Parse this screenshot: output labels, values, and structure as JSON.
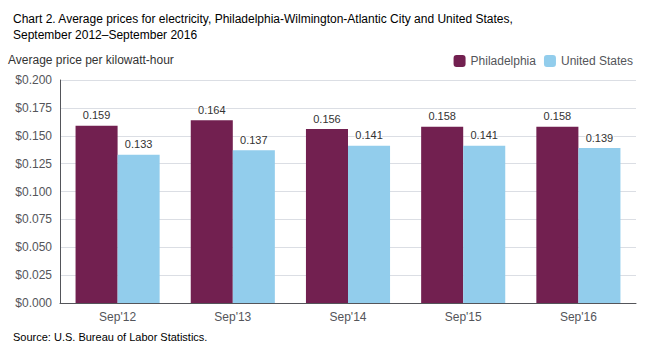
{
  "chart_data": {
    "type": "bar",
    "title": "Chart 2. Average prices for electricity, Philadelphia-Wilmington-Atlantic City and United States,\nSeptember 2012–September 2016",
    "ylabel": "Average price per kilowatt-hour",
    "source": "Source: U.S. Bureau of Labor Statistics.",
    "categories": [
      "Sep'12",
      "Sep'13",
      "Sep'14",
      "Sep'15",
      "Sep'16"
    ],
    "series": [
      {
        "name": "Philadelphia",
        "color": "#722050",
        "values": [
          0.159,
          0.164,
          0.156,
          0.158,
          0.158
        ]
      },
      {
        "name": "United States",
        "color": "#92cdec",
        "values": [
          0.133,
          0.137,
          0.141,
          0.141,
          0.139
        ]
      }
    ],
    "ylim": [
      0,
      0.2
    ],
    "yticks": [
      {
        "value": 0,
        "label": "$0.000"
      },
      {
        "value": 0.025,
        "label": "$0.025"
      },
      {
        "value": 0.05,
        "label": "$0.050"
      },
      {
        "value": 0.075,
        "label": "$0.075"
      },
      {
        "value": 0.1,
        "label": "$0.100"
      },
      {
        "value": 0.125,
        "label": "$0.125"
      },
      {
        "value": 0.15,
        "label": "$0.150"
      },
      {
        "value": 0.175,
        "label": "$0.175"
      },
      {
        "value": 0.2,
        "label": "$0.200"
      }
    ],
    "grid": true,
    "legend": "upper right",
    "data_labels": true
  }
}
